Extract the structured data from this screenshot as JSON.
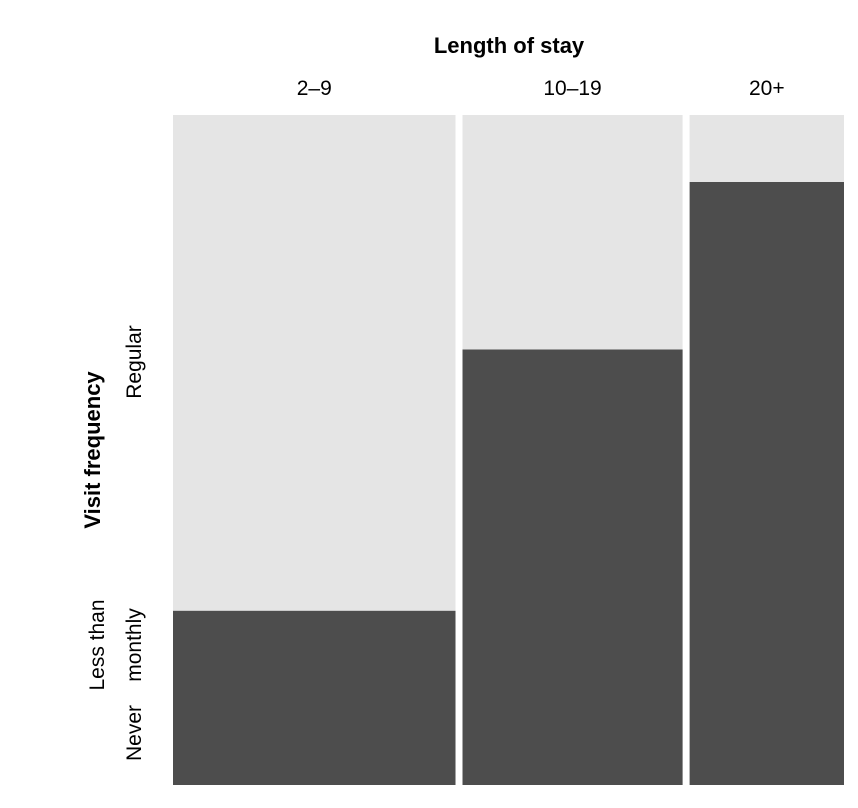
{
  "chart_data": {
    "type": "mosaic",
    "xlabel": "Length of stay",
    "ylabel": "Visit frequency",
    "categories": [
      "2–9",
      "10–19",
      "20+"
    ],
    "column_widths": [
      0.43,
      0.335,
      0.235
    ],
    "y_levels": [
      "Never",
      "Less than monthly",
      "Regular"
    ],
    "y_tick_labels": [
      {
        "level": "Never",
        "lines": [
          "Never"
        ]
      },
      {
        "level": "Less than monthly",
        "lines": [
          "Less than",
          "monthly"
        ]
      },
      {
        "level": "Regular",
        "lines": [
          "Regular"
        ]
      }
    ],
    "series": [
      {
        "values": [
          0.26,
          0.65,
          0.9
        ],
        "color": "#4d4d4d"
      },
      {
        "values": [
          0.74,
          0.35,
          0.1
        ],
        "color": "#e5e5e5"
      }
    ]
  }
}
